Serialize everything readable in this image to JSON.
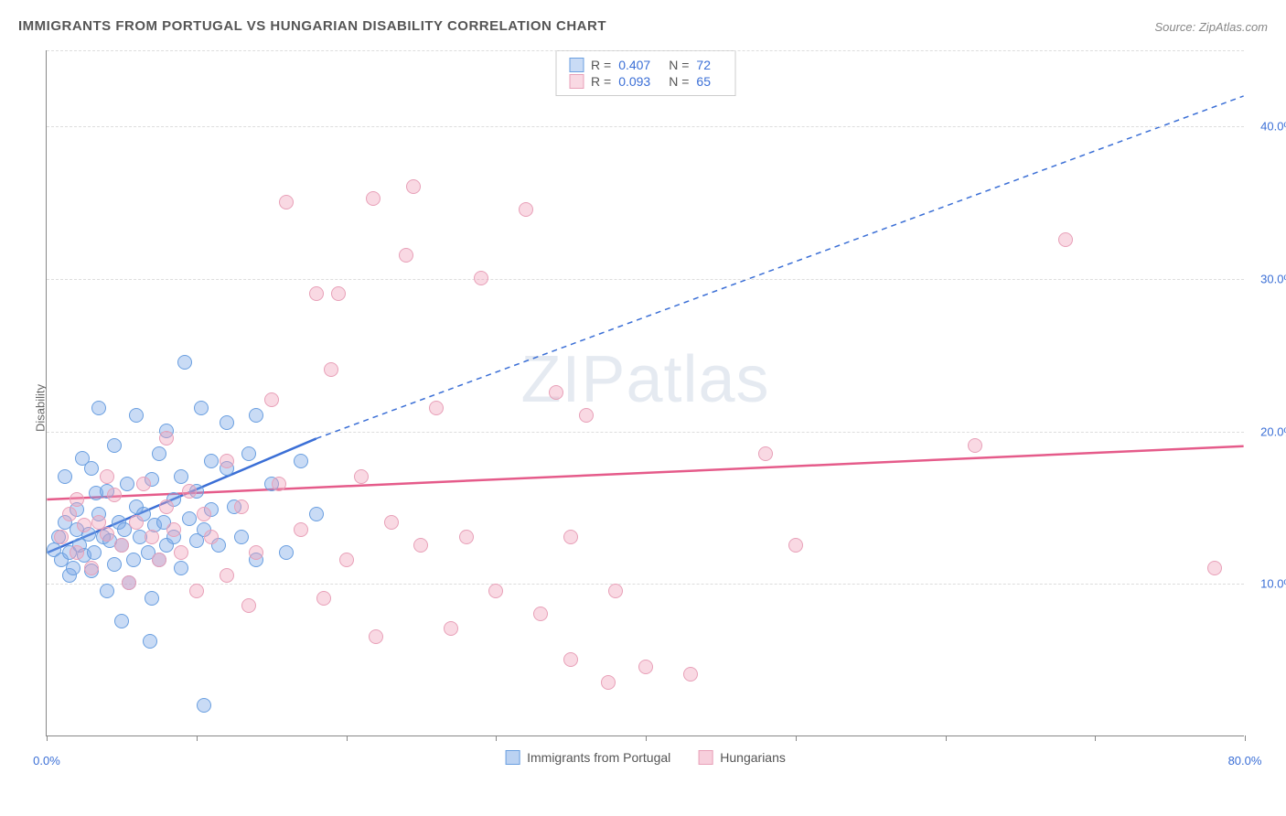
{
  "title": "IMMIGRANTS FROM PORTUGAL VS HUNGARIAN DISABILITY CORRELATION CHART",
  "source": "Source: ZipAtlas.com",
  "ylabel": "Disability",
  "watermark": "ZIPatlas",
  "chart": {
    "type": "scatter",
    "xlim": [
      0,
      80
    ],
    "ylim": [
      0,
      45
    ],
    "xtick_positions": [
      0,
      10,
      20,
      30,
      40,
      50,
      60,
      70,
      80
    ],
    "xtick_labels": [
      "0.0%",
      "",
      "",
      "",
      "",
      "",
      "",
      "",
      "80.0%"
    ],
    "ytick_positions": [
      10,
      20,
      30,
      40
    ],
    "ytick_labels": [
      "10.0%",
      "20.0%",
      "30.0%",
      "40.0%"
    ],
    "grid_color": "#dddddd",
    "axis_color": "#888888",
    "background_color": "#ffffff",
    "marker_size": 16,
    "marker_opacity": 0.45
  },
  "series": [
    {
      "name": "Immigrants from Portugal",
      "color_fill": "rgba(120,165,230,0.4)",
      "color_stroke": "#6a9fe0",
      "line_color": "#3b6fd6",
      "r": "0.407",
      "n": "72",
      "trend": {
        "x1": 0,
        "y1": 12,
        "x2_solid": 18,
        "y2_solid": 19.5,
        "x2": 80,
        "y2": 42
      },
      "points": [
        [
          0.5,
          12.2
        ],
        [
          0.8,
          13.0
        ],
        [
          1.0,
          11.5
        ],
        [
          1.2,
          14.0
        ],
        [
          1.2,
          17.0
        ],
        [
          1.5,
          12.0
        ],
        [
          1.5,
          10.5
        ],
        [
          1.8,
          11.0
        ],
        [
          2.0,
          13.5
        ],
        [
          2.0,
          14.8
        ],
        [
          2.2,
          12.5
        ],
        [
          2.4,
          18.2
        ],
        [
          2.5,
          11.8
        ],
        [
          2.8,
          13.2
        ],
        [
          3.0,
          17.5
        ],
        [
          3.0,
          10.8
        ],
        [
          3.2,
          12.0
        ],
        [
          3.3,
          15.9
        ],
        [
          3.5,
          14.5
        ],
        [
          3.5,
          21.5
        ],
        [
          3.8,
          13.0
        ],
        [
          4.0,
          9.5
        ],
        [
          4.0,
          16.0
        ],
        [
          4.2,
          12.8
        ],
        [
          4.5,
          11.2
        ],
        [
          4.5,
          19.0
        ],
        [
          4.8,
          14.0
        ],
        [
          5.0,
          7.5
        ],
        [
          5.0,
          12.5
        ],
        [
          5.4,
          16.5
        ],
        [
          5.2,
          13.5
        ],
        [
          5.5,
          10.0
        ],
        [
          5.8,
          11.5
        ],
        [
          6.0,
          15.0
        ],
        [
          6.0,
          21.0
        ],
        [
          6.2,
          13.0
        ],
        [
          6.5,
          14.5
        ],
        [
          6.8,
          12.0
        ],
        [
          7.0,
          16.8
        ],
        [
          7.0,
          9.0
        ],
        [
          7.2,
          13.8
        ],
        [
          7.5,
          11.5
        ],
        [
          7.5,
          18.5
        ],
        [
          7.8,
          14.0
        ],
        [
          8.0,
          12.5
        ],
        [
          8.0,
          20.0
        ],
        [
          8.5,
          15.5
        ],
        [
          8.5,
          13.0
        ],
        [
          9.0,
          11.0
        ],
        [
          9.0,
          17.0
        ],
        [
          9.5,
          14.2
        ],
        [
          9.2,
          24.5
        ],
        [
          10.0,
          12.8
        ],
        [
          10.0,
          16.0
        ],
        [
          10.3,
          21.5
        ],
        [
          10.5,
          13.5
        ],
        [
          11.0,
          18.0
        ],
        [
          11.0,
          14.8
        ],
        [
          11.5,
          12.5
        ],
        [
          12.0,
          17.5
        ],
        [
          12.0,
          20.5
        ],
        [
          12.5,
          15.0
        ],
        [
          13.0,
          13.0
        ],
        [
          13.5,
          18.5
        ],
        [
          14.0,
          11.5
        ],
        [
          14.0,
          21.0
        ],
        [
          15.0,
          16.5
        ],
        [
          10.5,
          2.0
        ],
        [
          16.0,
          12.0
        ],
        [
          17.0,
          18.0
        ],
        [
          18.0,
          14.5
        ],
        [
          6.9,
          6.2
        ]
      ]
    },
    {
      "name": "Hungarians",
      "color_fill": "rgba(240,160,185,0.4)",
      "color_stroke": "#e8a0b8",
      "line_color": "#e55b8a",
      "r": "0.093",
      "n": "65",
      "trend": {
        "x1": 0,
        "y1": 15.5,
        "x2_solid": 80,
        "y2_solid": 19,
        "x2": 80,
        "y2": 19
      },
      "points": [
        [
          1.0,
          13.0
        ],
        [
          1.5,
          14.5
        ],
        [
          2.0,
          12.0
        ],
        [
          2.0,
          15.5
        ],
        [
          2.5,
          13.8
        ],
        [
          3.0,
          11.0
        ],
        [
          3.5,
          14.0
        ],
        [
          4.0,
          17.0
        ],
        [
          4.0,
          13.2
        ],
        [
          4.5,
          15.8
        ],
        [
          5.0,
          12.5
        ],
        [
          5.5,
          10.0
        ],
        [
          6.0,
          14.0
        ],
        [
          6.5,
          16.5
        ],
        [
          7.0,
          13.0
        ],
        [
          7.5,
          11.5
        ],
        [
          8.0,
          15.0
        ],
        [
          8.0,
          19.5
        ],
        [
          8.5,
          13.5
        ],
        [
          9.0,
          12.0
        ],
        [
          9.5,
          16.0
        ],
        [
          10.0,
          9.5
        ],
        [
          10.5,
          14.5
        ],
        [
          11.0,
          13.0
        ],
        [
          12.0,
          18.0
        ],
        [
          12.0,
          10.5
        ],
        [
          13.0,
          15.0
        ],
        [
          13.5,
          8.5
        ],
        [
          14.0,
          12.0
        ],
        [
          15.0,
          22.0
        ],
        [
          15.5,
          16.5
        ],
        [
          16.0,
          35.0
        ],
        [
          17.0,
          13.5
        ],
        [
          18.0,
          29.0
        ],
        [
          18.5,
          9.0
        ],
        [
          19.0,
          24.0
        ],
        [
          19.5,
          29.0
        ],
        [
          20.0,
          11.5
        ],
        [
          21.0,
          17.0
        ],
        [
          22.0,
          6.5
        ],
        [
          23.0,
          14.0
        ],
        [
          24.0,
          31.5
        ],
        [
          24.5,
          36.0
        ],
        [
          25.0,
          12.5
        ],
        [
          26.0,
          21.5
        ],
        [
          21.8,
          35.2
        ],
        [
          27.0,
          7.0
        ],
        [
          28.0,
          13.0
        ],
        [
          29.0,
          30.0
        ],
        [
          30.0,
          9.5
        ],
        [
          32.0,
          34.5
        ],
        [
          33.0,
          8.0
        ],
        [
          34.0,
          22.5
        ],
        [
          35.0,
          13.0
        ],
        [
          36.0,
          21.0
        ],
        [
          38.0,
          9.5
        ],
        [
          40.0,
          4.5
        ],
        [
          37.5,
          3.5
        ],
        [
          43.0,
          4.0
        ],
        [
          48.0,
          18.5
        ],
        [
          50.0,
          12.5
        ],
        [
          62.0,
          19.0
        ],
        [
          68.0,
          32.5
        ],
        [
          78.0,
          11.0
        ],
        [
          35.0,
          5.0
        ]
      ]
    }
  ],
  "legend_bottom": [
    {
      "label": "Immigrants from Portugal",
      "fill": "rgba(120,165,230,0.5)",
      "stroke": "#6a9fe0"
    },
    {
      "label": "Hungarians",
      "fill": "rgba(240,160,185,0.5)",
      "stroke": "#e8a0b8"
    }
  ]
}
